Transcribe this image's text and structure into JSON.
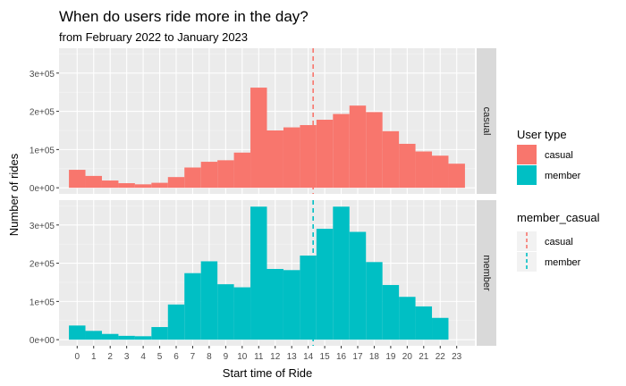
{
  "chart_data": {
    "type": "bar",
    "title": "When do users ride more in the day?",
    "subtitle": "from February 2022 to January 2023",
    "xlabel": "Start time of Ride",
    "ylabel": "Number of rides",
    "categories": [
      "0",
      "1",
      "2",
      "3",
      "4",
      "5",
      "6",
      "7",
      "8",
      "9",
      "10",
      "11",
      "12",
      "13",
      "14",
      "15",
      "16",
      "17",
      "18",
      "19",
      "20",
      "21",
      "22",
      "23"
    ],
    "y_ticks": [
      "0e+00",
      "1e+05",
      "2e+05",
      "3e+05"
    ],
    "ylim": [
      0,
      350000
    ],
    "grid": true,
    "facets": [
      "casual",
      "member"
    ],
    "series": [
      {
        "name": "casual",
        "color": "#F8766D",
        "values": [
          47000,
          31000,
          19000,
          12000,
          9000,
          13000,
          28000,
          53000,
          68000,
          72000,
          92000,
          262000,
          150000,
          158000,
          164000,
          178000,
          193000,
          215000,
          198000,
          148000,
          115000,
          95000,
          84000,
          63000
        ],
        "mean_start_time": 14.3
      },
      {
        "name": "member",
        "color": "#00BFC4",
        "values": [
          37000,
          23000,
          15000,
          10000,
          9000,
          33000,
          92000,
          174000,
          205000,
          145000,
          137000,
          348000,
          185000,
          182000,
          220000,
          290000,
          348000,
          282000,
          203000,
          143000,
          112000,
          87000,
          57000,
          0
        ],
        "mean_start_time": 14.3
      }
    ],
    "legends": [
      {
        "title": "User type",
        "entries": [
          "casual",
          "member"
        ],
        "kind": "fill"
      },
      {
        "title": "member_casual",
        "entries": [
          "casual",
          "member"
        ],
        "kind": "dashed-line"
      }
    ],
    "legend_position": "right"
  }
}
